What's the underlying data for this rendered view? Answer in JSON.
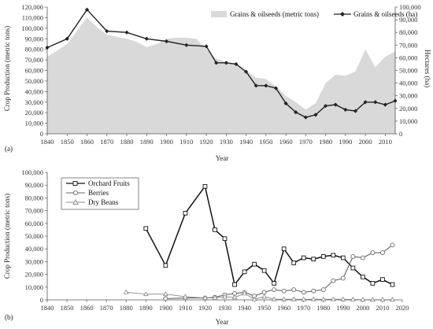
{
  "chart_data": [
    {
      "type": "area",
      "panel_label": "(a)",
      "xlabel": "Year",
      "ylabel": "Crop Production (metric tons)",
      "y2label": "Hectares (ha)",
      "xlim": [
        1840,
        2015
      ],
      "ylim": [
        0,
        120000
      ],
      "y2lim": [
        0,
        100000
      ],
      "xticks": [
        1840,
        1850,
        1860,
        1870,
        1880,
        1890,
        1900,
        1910,
        1920,
        1930,
        1940,
        1950,
        1960,
        1970,
        1980,
        1990,
        2000,
        2010
      ],
      "yticks": [
        0,
        10000,
        20000,
        30000,
        40000,
        50000,
        60000,
        70000,
        80000,
        90000,
        100000,
        110000,
        120000
      ],
      "ytick_labels": [
        "0",
        "10,000",
        "20,000",
        "30,000",
        "40,000",
        "50,000",
        "60,000",
        "70,000",
        "80,000",
        "90,000",
        "100,000",
        "110,000",
        "120,000"
      ],
      "y2ticks": [
        0,
        10000,
        20000,
        30000,
        40000,
        50000,
        60000,
        70000,
        80000,
        90000,
        100000
      ],
      "y2tick_labels": [
        "0",
        "10,000",
        "20,000",
        "30,000",
        "40,000",
        "50,000",
        "60,000",
        "70,000",
        "80,000",
        "90,000",
        "100,000"
      ],
      "legend_position": "top-right",
      "grid": false,
      "series": [
        {
          "name": "Grains & oilseeds (metric tons)",
          "kind": "area",
          "axis": "left",
          "color": "#d9d9d9",
          "x": [
            1840,
            1850,
            1860,
            1865,
            1870,
            1875,
            1880,
            1885,
            1890,
            1895,
            1900,
            1905,
            1910,
            1915,
            1920,
            1925,
            1930,
            1935,
            1940,
            1945,
            1950,
            1955,
            1960,
            1965,
            1970,
            1975,
            1980,
            1985,
            1990,
            1995,
            2000,
            2005,
            2010,
            2015
          ],
          "values": [
            73000,
            85000,
            110000,
            101000,
            94000,
            92000,
            90000,
            87000,
            82000,
            85000,
            90000,
            91000,
            91000,
            90000,
            80000,
            71000,
            68000,
            66000,
            60000,
            53000,
            52000,
            45000,
            36000,
            30000,
            23000,
            29000,
            48000,
            56000,
            55000,
            59000,
            80000,
            63000,
            73000,
            78000
          ]
        },
        {
          "name": "Grains & oilseeds (ha)",
          "kind": "line",
          "axis": "right",
          "color": "#222222",
          "marker": "diamond",
          "x": [
            1840,
            1850,
            1860,
            1870,
            1880,
            1890,
            1900,
            1910,
            1920,
            1925,
            1930,
            1935,
            1940,
            1945,
            1950,
            1955,
            1960,
            1965,
            1970,
            1975,
            1980,
            1985,
            1990,
            1995,
            2000,
            2005,
            2010,
            2015
          ],
          "values": [
            68000,
            75000,
            98000,
            81000,
            80000,
            75000,
            73000,
            70000,
            69000,
            56000,
            56000,
            55000,
            49000,
            38000,
            38000,
            36000,
            24000,
            17000,
            13000,
            15000,
            22000,
            23000,
            19000,
            18000,
            25000,
            25000,
            23000,
            26000
          ]
        }
      ]
    },
    {
      "type": "line",
      "panel_label": "(b)",
      "xlabel": "Year",
      "ylabel": "Crop Production (metric tons)",
      "xlim": [
        1840,
        2020
      ],
      "ylim": [
        0,
        100000
      ],
      "xticks": [
        1840,
        1850,
        1860,
        1870,
        1880,
        1890,
        1900,
        1910,
        1920,
        1930,
        1940,
        1950,
        1960,
        1970,
        1980,
        1990,
        2000,
        2010,
        2020
      ],
      "yticks": [
        0,
        10000,
        20000,
        30000,
        40000,
        50000,
        60000,
        70000,
        80000,
        90000,
        100000
      ],
      "ytick_labels": [
        "0",
        "10,000",
        "20,000",
        "30,000",
        "40,000",
        "50,000",
        "60,000",
        "70,000",
        "80,000",
        "90,000",
        "100,000"
      ],
      "legend_position": "top-left",
      "grid": false,
      "series": [
        {
          "name": "Orchard Fruits",
          "marker": "square",
          "color": "#111111",
          "x": [
            1890,
            1900,
            1910,
            1920,
            1925,
            1930,
            1935,
            1940,
            1945,
            1950,
            1955,
            1960,
            1965,
            1970,
            1975,
            1980,
            1985,
            1990,
            1995,
            2000,
            2005,
            2010,
            2015
          ],
          "values": [
            56000,
            27000,
            68000,
            89000,
            55000,
            48000,
            12000,
            22000,
            28000,
            23000,
            13000,
            40000,
            29000,
            33000,
            32000,
            34000,
            35000,
            33000,
            25000,
            18000,
            13000,
            16000,
            12000
          ]
        },
        {
          "name": "Berries",
          "marker": "circle",
          "color": "#666666",
          "x": [
            1900,
            1910,
            1920,
            1925,
            1930,
            1935,
            1940,
            1945,
            1950,
            1955,
            1960,
            1965,
            1970,
            1975,
            1980,
            1985,
            1990,
            1995,
            2000,
            2005,
            2010,
            2015
          ],
          "values": [
            1000,
            1500,
            1500,
            2000,
            4000,
            5000,
            6000,
            3000,
            6000,
            8000,
            7000,
            8000,
            6000,
            7000,
            8000,
            15000,
            17000,
            34000,
            33000,
            37000,
            37000,
            43000
          ]
        },
        {
          "name": "Dry Beans",
          "marker": "triangle",
          "color": "#888888",
          "x": [
            1880,
            1890,
            1900,
            1910,
            1920,
            1925,
            1930,
            1935,
            1940,
            1945,
            1950,
            1955,
            1960,
            1965,
            1970,
            1975,
            1980,
            1985,
            1990,
            1995,
            2000,
            2005,
            2010,
            2015
          ],
          "values": [
            6000,
            4500,
            4500,
            2500,
            1500,
            1500,
            2500,
            2000,
            5000,
            500,
            2500,
            500,
            500,
            500,
            500,
            500,
            500,
            500,
            500,
            300,
            200,
            200,
            200,
            200
          ]
        }
      ]
    }
  ]
}
